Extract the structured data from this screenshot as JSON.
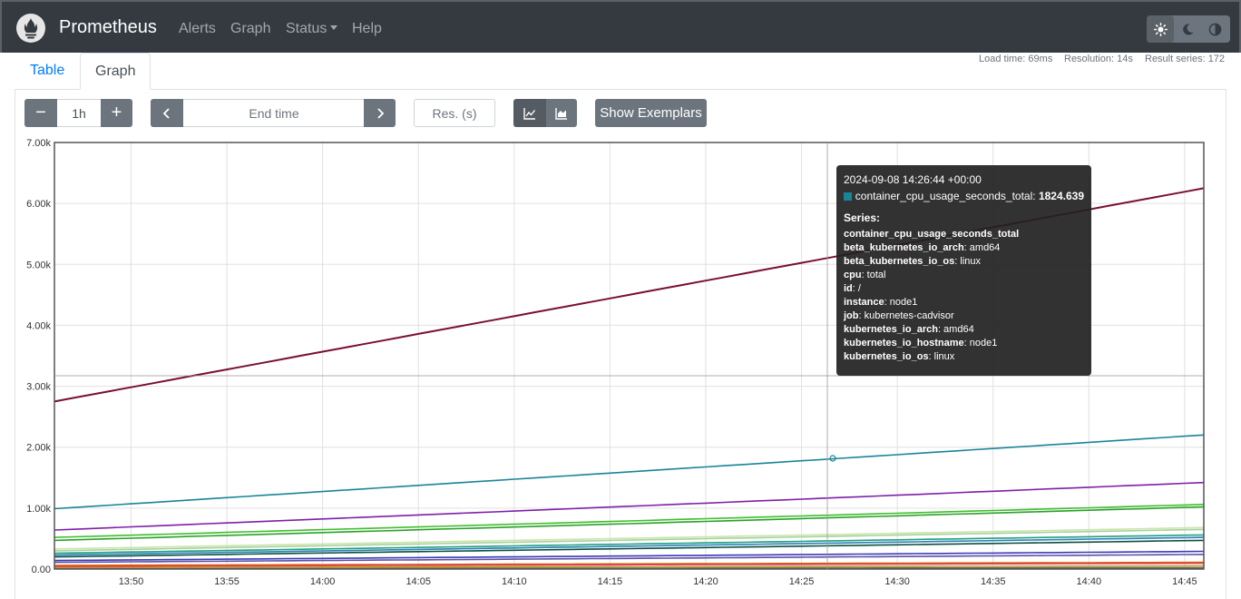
{
  "navbar": {
    "brand": "Prometheus",
    "items": [
      {
        "label": "Alerts"
      },
      {
        "label": "Graph"
      },
      {
        "label": "Status"
      },
      {
        "label": "Help"
      }
    ],
    "theme_icons": [
      "sun-icon",
      "moon-icon",
      "contrast-icon"
    ]
  },
  "meta": {
    "load_time": "Load time: 69ms",
    "resolution": "Resolution: 14s",
    "result_series": "Result series: 172"
  },
  "tabs": [
    {
      "label": "Table"
    },
    {
      "label": "Graph"
    }
  ],
  "controls": {
    "minus": "−",
    "range_value": "1h",
    "plus": "+",
    "end_time_placeholder": "End time",
    "resolution_placeholder": "Res. (s)",
    "show_exemplars": "Show Exemplars"
  },
  "colors": {
    "navbar": "#343a40",
    "accent": "#007bff",
    "tooltip_series": "#1a8499"
  },
  "chart_data": {
    "type": "line",
    "xlabel": "",
    "ylabel": "",
    "ylim": [
      0,
      7000
    ],
    "x_ticks": [
      "13:50",
      "13:55",
      "14:00",
      "14:05",
      "14:10",
      "14:15",
      "14:20",
      "14:25",
      "14:30",
      "14:35",
      "14:40",
      "14:45"
    ],
    "y_ticks": [
      "0.00",
      "1.00k",
      "2.00k",
      "3.00k",
      "4.00k",
      "5.00k",
      "6.00k",
      "7.00k"
    ],
    "x_range": [
      "13:46",
      "14:46"
    ],
    "grid": true,
    "series": [
      {
        "color": "#7a0f33",
        "values": [
          2750,
          6250
        ]
      },
      {
        "color": "#1a8499",
        "values": [
          990,
          2200
        ]
      },
      {
        "color": "#7e1fa8",
        "values": [
          640,
          1420
        ]
      },
      {
        "color": "#3fbf2c",
        "values": [
          520,
          1060
        ]
      },
      {
        "color": "#2ca02c",
        "values": [
          470,
          1020
        ]
      },
      {
        "color": "#c8e6a8",
        "values": [
          330,
          680
        ]
      },
      {
        "color": "#a8d0a0",
        "values": [
          300,
          650
        ]
      },
      {
        "color": "#20a080",
        "values": [
          260,
          560
        ]
      },
      {
        "color": "#2c7fb8",
        "values": [
          230,
          520
        ]
      },
      {
        "color": "#0a5040",
        "values": [
          200,
          470
        ]
      },
      {
        "color": "#3a3ab8",
        "values": [
          140,
          290
        ]
      },
      {
        "color": "#5e4fa2",
        "values": [
          110,
          240
        ]
      },
      {
        "color": "#d95f02",
        "values": [
          60,
          110
        ]
      },
      {
        "color": "#e7298a",
        "values": [
          45,
          95
        ]
      },
      {
        "color": "#b8a020",
        "values": [
          25,
          50
        ]
      },
      {
        "color": "#666666",
        "values": [
          10,
          20
        ]
      }
    ],
    "cursor": {
      "time": "14:26:44",
      "value": 1824.639
    }
  },
  "tooltip": {
    "time": "2024-09-08 14:26:44 +00:00",
    "metric": "container_cpu_usage_seconds_total:",
    "value": "1824.639",
    "series_heading": "Series:",
    "series_name": "container_cpu_usage_seconds_total",
    "labels": [
      {
        "key": "beta_kubernetes_io_arch",
        "value": ": amd64"
      },
      {
        "key": "beta_kubernetes_io_os",
        "value": ": linux"
      },
      {
        "key": "cpu",
        "value": ": total"
      },
      {
        "key": "id",
        "value": ": /"
      },
      {
        "key": "instance",
        "value": ": node1"
      },
      {
        "key": "job",
        "value": ": kubernetes-cadvisor"
      },
      {
        "key": "kubernetes_io_arch",
        "value": ": amd64"
      },
      {
        "key": "kubernetes_io_hostname",
        "value": ": node1"
      },
      {
        "key": "kubernetes_io_os",
        "value": ": linux"
      }
    ]
  }
}
